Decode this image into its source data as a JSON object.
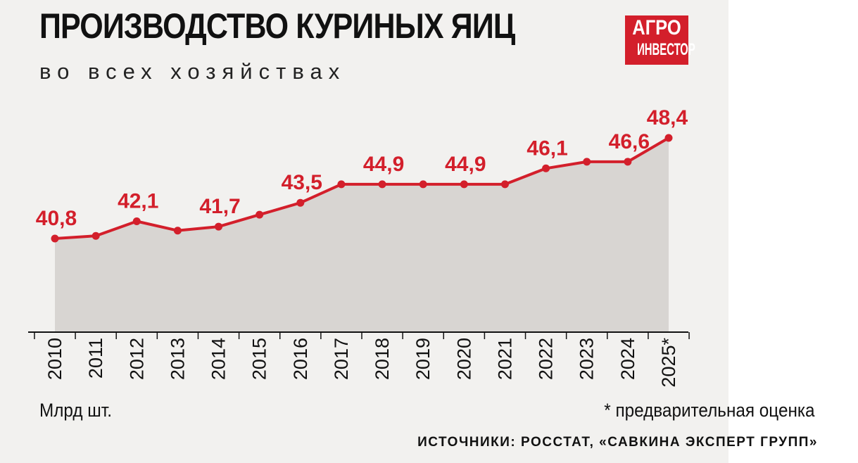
{
  "header": {
    "title": "ПРОИЗВОДСТВО КУРИНЫХ ЯИЦ",
    "subtitle": "во всех хозяйствах"
  },
  "logo": {
    "line1": "АГРО",
    "line2": "ИНВЕСТОР",
    "color": "#d31f2b"
  },
  "footer": {
    "unit": "Млрд шт.",
    "note": "* предварительная оценка",
    "source": "ИСТОЧНИКИ: РОССТАТ, «САВКИНА ЭКСПЕРТ ГРУПП»"
  },
  "chart_data": {
    "type": "area",
    "title": "ПРОИЗВОДСТВО КУРИНЫХ ЯИЦ",
    "subtitle": "во всех хозяйствах",
    "ylabel": "Млрд шт.",
    "categories": [
      "2010",
      "2011",
      "2012",
      "2013",
      "2014",
      "2015",
      "2016",
      "2017",
      "2018",
      "2019",
      "2020",
      "2021",
      "2022",
      "2023",
      "2024",
      "2025*"
    ],
    "values": [
      40.8,
      41.0,
      42.1,
      41.4,
      41.7,
      42.6,
      43.5,
      44.9,
      44.9,
      44.9,
      44.9,
      44.9,
      46.1,
      46.6,
      46.6,
      48.4
    ],
    "data_labels": [
      {
        "index": 0,
        "text": "40,8"
      },
      {
        "index": 2,
        "text": "42,1"
      },
      {
        "index": 4,
        "text": "41,7"
      },
      {
        "index": 6,
        "text": "43,5"
      },
      {
        "index": 8,
        "text": "44,9"
      },
      {
        "index": 10,
        "text": "44,9"
      },
      {
        "index": 12,
        "text": "46,1"
      },
      {
        "index": 14,
        "text": "46,6"
      },
      {
        "index": 15,
        "text": "48,4"
      }
    ],
    "line_color": "#d31f2b",
    "area_color": "#d8d5d2",
    "grid": false,
    "legend": "none"
  }
}
